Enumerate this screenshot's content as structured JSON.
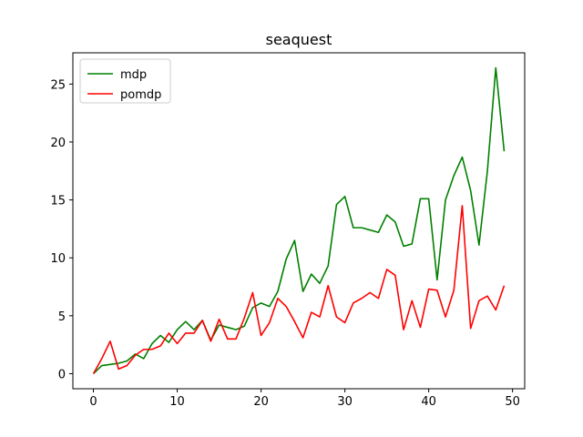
{
  "chart_data": {
    "type": "line",
    "title": "seaquest",
    "xlabel": "",
    "ylabel": "",
    "xlim": [
      -2.45,
      51.45
    ],
    "ylim": [
      -1.3,
      27.7
    ],
    "x_ticks": [
      0,
      10,
      20,
      30,
      40,
      50
    ],
    "y_ticks": [
      0,
      5,
      10,
      15,
      20,
      25
    ],
    "grid": false,
    "legend_position": "top-left",
    "x": [
      0,
      1,
      2,
      3,
      4,
      5,
      6,
      7,
      8,
      9,
      10,
      11,
      12,
      13,
      14,
      15,
      16,
      17,
      18,
      19,
      20,
      21,
      22,
      23,
      24,
      25,
      26,
      27,
      28,
      29,
      30,
      31,
      32,
      33,
      34,
      35,
      36,
      37,
      38,
      39,
      40,
      41,
      42,
      43,
      44,
      45,
      46,
      47,
      48,
      49
    ],
    "series": [
      {
        "name": "mdp",
        "color": "#008000",
        "values": [
          0.0,
          0.7,
          0.8,
          0.9,
          1.1,
          1.7,
          1.3,
          2.6,
          3.3,
          2.7,
          3.8,
          4.5,
          3.8,
          4.6,
          2.9,
          4.2,
          4.0,
          3.8,
          4.1,
          5.7,
          6.1,
          5.8,
          7.1,
          9.9,
          11.5,
          7.1,
          8.6,
          7.8,
          9.3,
          14.6,
          15.3,
          12.6,
          12.6,
          12.4,
          12.2,
          13.7,
          13.1,
          11.0,
          11.2,
          15.1,
          15.1,
          8.1,
          15.0,
          17.1,
          18.7,
          15.8,
          11.1,
          17.5,
          26.4,
          19.2
        ]
      },
      {
        "name": "pomdp",
        "color": "#ff0000",
        "values": [
          0.0,
          1.3,
          2.8,
          0.4,
          0.7,
          1.6,
          2.1,
          2.1,
          2.4,
          3.5,
          2.6,
          3.5,
          3.5,
          4.6,
          2.8,
          4.7,
          3.0,
          3.0,
          4.8,
          7.0,
          3.3,
          4.4,
          6.5,
          5.8,
          4.5,
          3.1,
          5.3,
          4.9,
          7.6,
          4.9,
          4.4,
          6.1,
          6.5,
          7.0,
          6.5,
          9.0,
          8.5,
          3.8,
          6.3,
          4.0,
          7.3,
          7.2,
          4.9,
          7.2,
          14.5,
          3.9,
          6.3,
          6.7,
          5.5,
          7.6
        ]
      }
    ]
  }
}
